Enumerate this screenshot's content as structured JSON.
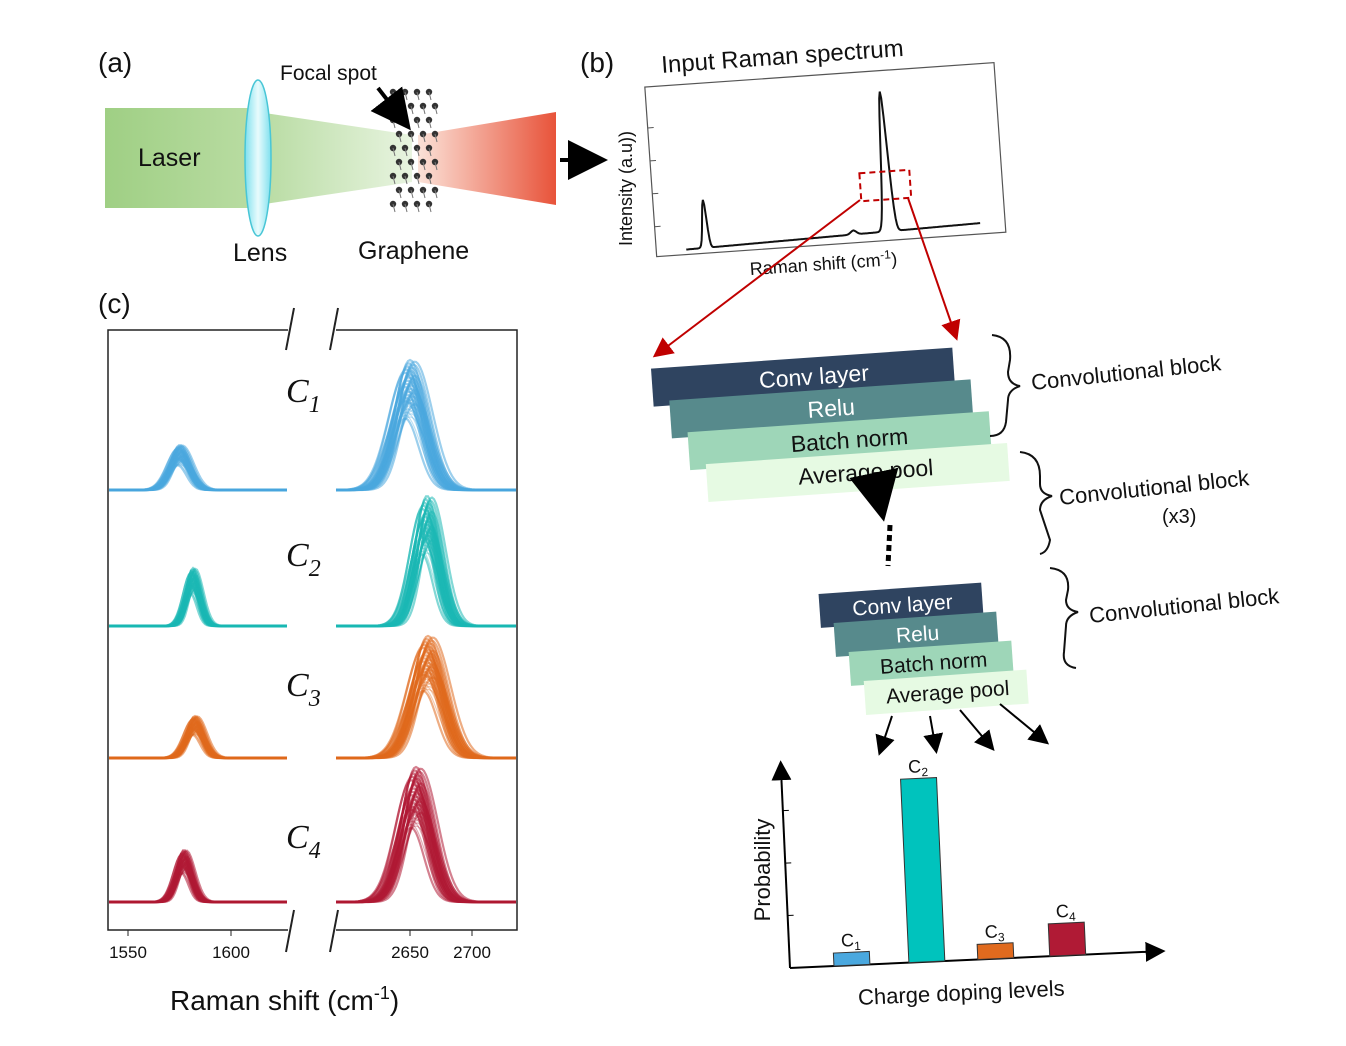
{
  "panel_labels": {
    "a": "(a)",
    "b": "(b)",
    "c": "(c)"
  },
  "panel_a": {
    "laser": "Laser",
    "lens": "Lens",
    "graphene": "Graphene",
    "focal_spot": "Focal spot"
  },
  "panel_b": {
    "title": "Input Raman spectrum",
    "ylabel": "Intensity (a.u))",
    "xlabel_main": "Raman shift (cm",
    "xlabel_sup": "-1",
    "xlabel_end": ")"
  },
  "cnn": {
    "block_top": {
      "layers": [
        "Conv layer",
        "Relu",
        "Batch norm",
        "Average pool"
      ]
    },
    "block_bottom": {
      "layers": [
        "Conv layer",
        "Relu",
        "Batch norm",
        "Average pool"
      ]
    },
    "brace_labels": {
      "first": "Convolutional block",
      "middle_line1": "Convolutional block",
      "middle_line2": "(x3)",
      "last": "Convolutional block"
    },
    "colors": [
      "#2f4460",
      "#578a8c",
      "#9ed6b8",
      "#e6fae3"
    ]
  },
  "panel_c": {
    "classes": [
      {
        "sym": "C",
        "sub": "1",
        "color": "#4aa8df"
      },
      {
        "sym": "C",
        "sub": "2",
        "color": "#1bb8b4"
      },
      {
        "sym": "C",
        "sub": "3",
        "color": "#e06a1e"
      },
      {
        "sym": "C",
        "sub": "4",
        "color": "#b01a35"
      }
    ],
    "xticks_left": [
      "1550",
      "1600"
    ],
    "xticks_right": [
      "2650",
      "2700"
    ],
    "xlabel_main": "Raman shift (cm",
    "xlabel_sup": "-1",
    "xlabel_end": ")"
  },
  "chart_data": {
    "type": "bar",
    "categories": [
      "C1",
      "C2",
      "C3",
      "C4"
    ],
    "values": [
      0.06,
      0.85,
      0.07,
      0.15
    ],
    "colors": [
      "#4aa8df",
      "#00c3bd",
      "#e06a1e",
      "#b01a35"
    ],
    "title": "",
    "xlabel": "Charge doping levels",
    "ylabel": "Probability",
    "ylim": [
      0,
      1
    ]
  }
}
